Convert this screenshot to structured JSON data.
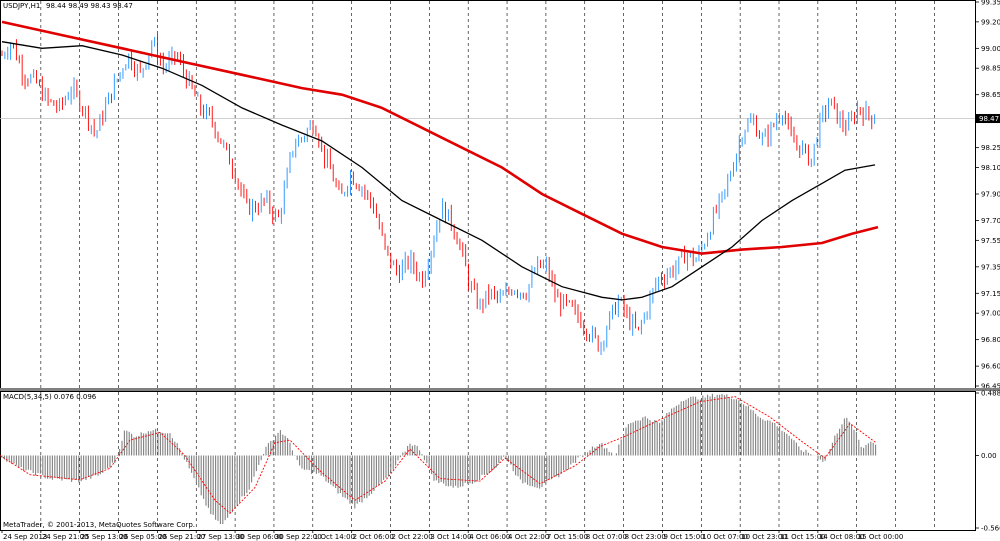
{
  "colors": {
    "background": "#ffffff",
    "up_candle": "#1e90ff",
    "down_candle": "#ff0000",
    "sma_fast": "#000000",
    "sma_slow": "#e00000",
    "macd_histogram": "#808080",
    "macd_signal": "#ff0000",
    "grid": "#000000"
  },
  "chart_data": [
    {
      "type": "candlestick",
      "title": "USDJPY,H1",
      "ohlc_header": "98.44 98.49 98.43 98.47",
      "ylim": [
        96.45,
        99.35
      ],
      "y_ticks": [
        "99.35",
        "99.20",
        "99.00",
        "98.85",
        "98.65",
        "98.47",
        "98.25",
        "98.10",
        "97.90",
        "97.70",
        "97.55",
        "97.35",
        "97.15",
        "97.00",
        "96.80",
        "96.60",
        "96.45"
      ],
      "y_tick_values": [
        99.35,
        99.2,
        99.0,
        98.85,
        98.65,
        98.47,
        98.25,
        98.1,
        97.9,
        97.7,
        97.55,
        97.35,
        97.15,
        97.0,
        96.8,
        96.6,
        96.45
      ],
      "current_price": 98.47,
      "x_tick_labels": [
        "24 Sep 2013",
        "24 Sep 21:00",
        "25 Sep 13:00",
        "26 Sep 05:00",
        "26 Sep 21:00",
        "27 Sep 13:00",
        "30 Sep 06:00",
        "30 Sep 22:00",
        "1 Oct 14:00",
        "2 Oct 06:00",
        "2 Oct 22:00",
        "3 Oct 14:00",
        "4 Oct 06:00",
        "4 Oct 22:00",
        "7 Oct 15:00",
        "8 Oct 07:00",
        "8 Oct 23:00",
        "9 Oct 15:00",
        "10 Oct 07:00",
        "10 Oct 23:00",
        "11 Oct 15:00",
        "14 Oct 08:00",
        "15 Oct 00:00"
      ],
      "close_path": [
        [
          0,
          98.95
        ],
        [
          8,
          99.05
        ],
        [
          18,
          98.8
        ],
        [
          28,
          98.75
        ],
        [
          38,
          98.6
        ],
        [
          48,
          98.55
        ],
        [
          58,
          98.7
        ],
        [
          68,
          98.55
        ],
        [
          78,
          98.35
        ],
        [
          88,
          98.6
        ],
        [
          95,
          98.75
        ],
        [
          105,
          98.95
        ],
        [
          115,
          98.8
        ],
        [
          125,
          99.05
        ],
        [
          135,
          98.85
        ],
        [
          145,
          98.95
        ],
        [
          155,
          98.75
        ],
        [
          165,
          98.55
        ],
        [
          175,
          98.45
        ],
        [
          185,
          98.25
        ],
        [
          195,
          98.05
        ],
        [
          203,
          97.8
        ],
        [
          210,
          97.8
        ],
        [
          220,
          97.85
        ],
        [
          230,
          97.7
        ],
        [
          236,
          97.95
        ],
        [
          242,
          98.25
        ],
        [
          252,
          98.35
        ],
        [
          260,
          98.45
        ],
        [
          268,
          98.2
        ],
        [
          275,
          98.05
        ],
        [
          282,
          97.85
        ],
        [
          290,
          98.05
        ],
        [
          300,
          97.95
        ],
        [
          310,
          97.8
        ],
        [
          320,
          97.45
        ],
        [
          330,
          97.3
        ],
        [
          340,
          97.4
        ],
        [
          350,
          97.25
        ],
        [
          358,
          97.5
        ],
        [
          366,
          97.8
        ],
        [
          374,
          97.7
        ],
        [
          382,
          97.5
        ],
        [
          390,
          97.2
        ],
        [
          398,
          97.05
        ],
        [
          406,
          97.15
        ],
        [
          416,
          97.1
        ],
        [
          426,
          97.2
        ],
        [
          436,
          97.15
        ],
        [
          446,
          97.35
        ],
        [
          454,
          97.35
        ],
        [
          462,
          97.1
        ],
        [
          472,
          97.05
        ],
        [
          482,
          96.95
        ],
        [
          490,
          96.85
        ],
        [
          498,
          96.75
        ],
        [
          506,
          96.95
        ],
        [
          514,
          97.1
        ],
        [
          522,
          96.95
        ],
        [
          530,
          96.85
        ],
        [
          538,
          97.05
        ],
        [
          546,
          97.25
        ],
        [
          554,
          97.3
        ],
        [
          562,
          97.35
        ],
        [
          570,
          97.45
        ],
        [
          578,
          97.4
        ],
        [
          586,
          97.55
        ],
        [
          594,
          97.75
        ],
        [
          602,
          97.9
        ],
        [
          610,
          98.15
        ],
        [
          618,
          98.4
        ],
        [
          626,
          98.45
        ],
        [
          634,
          98.3
        ],
        [
          642,
          98.4
        ],
        [
          650,
          98.55
        ],
        [
          658,
          98.3
        ],
        [
          666,
          98.25
        ],
        [
          674,
          98.15
        ],
        [
          682,
          98.45
        ],
        [
          690,
          98.6
        ],
        [
          698,
          98.45
        ],
        [
          705,
          98.4
        ],
        [
          713,
          98.55
        ],
        [
          721,
          98.5
        ],
        [
          729,
          98.47
        ]
      ],
      "x_index_range": [
        0,
        729
      ],
      "sma_fast": [
        [
          0,
          99.05
        ],
        [
          40,
          99.0
        ],
        [
          80,
          99.02
        ],
        [
          120,
          98.95
        ],
        [
          160,
          98.85
        ],
        [
          200,
          98.72
        ],
        [
          240,
          98.55
        ],
        [
          280,
          98.42
        ],
        [
          320,
          98.3
        ],
        [
          360,
          98.1
        ],
        [
          400,
          97.85
        ],
        [
          440,
          97.7
        ],
        [
          480,
          97.55
        ],
        [
          520,
          97.35
        ],
        [
          560,
          97.2
        ],
        [
          600,
          97.12
        ],
        [
          620,
          97.1
        ],
        [
          640,
          97.12
        ],
        [
          670,
          97.2
        ],
        [
          700,
          97.35
        ],
        [
          730,
          97.5
        ],
        [
          760,
          97.7
        ],
        [
          790,
          97.85
        ],
        [
          820,
          97.98
        ],
        [
          843,
          98.08
        ],
        [
          873,
          98.12
        ]
      ],
      "sma_slow": [
        [
          0,
          99.2
        ],
        [
          60,
          99.1
        ],
        [
          120,
          99.0
        ],
        [
          180,
          98.9
        ],
        [
          240,
          98.8
        ],
        [
          300,
          98.7
        ],
        [
          340,
          98.65
        ],
        [
          380,
          98.55
        ],
        [
          420,
          98.4
        ],
        [
          460,
          98.25
        ],
        [
          500,
          98.1
        ],
        [
          540,
          97.9
        ],
        [
          580,
          97.75
        ],
        [
          620,
          97.6
        ],
        [
          660,
          97.5
        ],
        [
          700,
          97.45
        ],
        [
          740,
          97.48
        ],
        [
          780,
          97.5
        ],
        [
          820,
          97.53
        ],
        [
          850,
          97.6
        ],
        [
          876,
          97.65
        ]
      ]
    },
    {
      "type": "bar",
      "title": "MACD(5,34,5) 0.076 0.096",
      "ylim": [
        -0.566,
        0.488
      ],
      "y_ticks": [
        "0.488",
        "0.00",
        "-0.566"
      ],
      "y_tick_values": [
        0.488,
        0.0,
        -0.566
      ],
      "histogram_path": [
        [
          0,
          0.0
        ],
        [
          20,
          -0.1
        ],
        [
          50,
          -0.18
        ],
        [
          80,
          -0.2
        ],
        [
          100,
          -0.15
        ],
        [
          115,
          -0.05
        ],
        [
          125,
          0.2
        ],
        [
          135,
          0.15
        ],
        [
          150,
          0.2
        ],
        [
          170,
          0.18
        ],
        [
          180,
          0.05
        ],
        [
          195,
          -0.2
        ],
        [
          210,
          -0.45
        ],
        [
          222,
          -0.55
        ],
        [
          235,
          -0.4
        ],
        [
          250,
          -0.25
        ],
        [
          265,
          0.05
        ],
        [
          280,
          0.2
        ],
        [
          290,
          0.1
        ],
        [
          300,
          -0.1
        ],
        [
          320,
          -0.15
        ],
        [
          340,
          -0.3
        ],
        [
          355,
          -0.4
        ],
        [
          370,
          -0.3
        ],
        [
          390,
          -0.15
        ],
        [
          410,
          0.1
        ],
        [
          420,
          0.05
        ],
        [
          435,
          -0.2
        ],
        [
          455,
          -0.25
        ],
        [
          475,
          -0.2
        ],
        [
          495,
          -0.1
        ],
        [
          505,
          0.0
        ],
        [
          520,
          -0.2
        ],
        [
          540,
          -0.25
        ],
        [
          560,
          -0.15
        ],
        [
          575,
          -0.05
        ],
        [
          590,
          0.05
        ],
        [
          600,
          0.1
        ],
        [
          615,
          0.0
        ],
        [
          628,
          0.25
        ],
        [
          645,
          0.3
        ],
        [
          660,
          0.25
        ],
        [
          670,
          0.35
        ],
        [
          685,
          0.45
        ],
        [
          700,
          0.45
        ],
        [
          720,
          0.48
        ],
        [
          735,
          0.45
        ],
        [
          745,
          0.4
        ],
        [
          760,
          0.3
        ],
        [
          775,
          0.25
        ],
        [
          790,
          0.15
        ],
        [
          800,
          0.05
        ],
        [
          815,
          0.0
        ],
        [
          825,
          -0.05
        ],
        [
          835,
          0.15
        ],
        [
          845,
          0.3
        ],
        [
          855,
          0.2
        ],
        [
          862,
          0.05
        ],
        [
          870,
          0.12
        ],
        [
          876,
          0.08
        ]
      ],
      "signal_path": [
        [
          0,
          0.0
        ],
        [
          30,
          -0.15
        ],
        [
          80,
          -0.19
        ],
        [
          110,
          -0.1
        ],
        [
          130,
          0.12
        ],
        [
          160,
          0.18
        ],
        [
          185,
          0.0
        ],
        [
          215,
          -0.35
        ],
        [
          230,
          -0.45
        ],
        [
          255,
          -0.25
        ],
        [
          275,
          0.1
        ],
        [
          290,
          0.12
        ],
        [
          320,
          -0.12
        ],
        [
          355,
          -0.35
        ],
        [
          385,
          -0.2
        ],
        [
          410,
          0.05
        ],
        [
          440,
          -0.18
        ],
        [
          480,
          -0.2
        ],
        [
          505,
          -0.02
        ],
        [
          540,
          -0.22
        ],
        [
          575,
          -0.08
        ],
        [
          600,
          0.07
        ],
        [
          625,
          0.15
        ],
        [
          660,
          0.28
        ],
        [
          700,
          0.42
        ],
        [
          735,
          0.46
        ],
        [
          770,
          0.3
        ],
        [
          800,
          0.12
        ],
        [
          825,
          -0.02
        ],
        [
          850,
          0.25
        ],
        [
          876,
          0.1
        ]
      ],
      "copyright": "MetaTrader, © 2001-2013, MetaQuotes Software Corp."
    }
  ]
}
